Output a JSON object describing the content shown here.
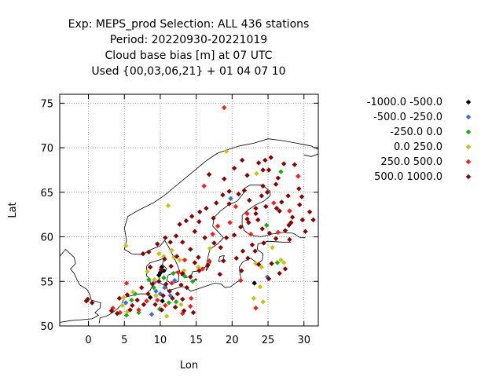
{
  "chart_data": {
    "type": "scatter",
    "title": [
      "Exp: MEPS_prod   Selection: ALL     436 stations",
      "Period: 20220930-20221019",
      "Cloud base bias [m] at  07 UTC",
      "Used {00,03,06,21} + 01 04 07 10"
    ],
    "xlabel": "Lon",
    "ylabel": "Lat",
    "xlim": [
      -4,
      32
    ],
    "ylim": [
      50,
      76
    ],
    "xticks": [
      0,
      5,
      10,
      15,
      20,
      25,
      30
    ],
    "yticks": [
      50,
      55,
      60,
      65,
      70,
      75
    ],
    "grid": true,
    "legend_position": "right",
    "series": [
      {
        "name": "-1000.0 -500.0",
        "color": "#000000",
        "points": [
          [
            10.2,
            56.6
          ],
          [
            10.5,
            56.2
          ],
          [
            10.0,
            56.0
          ],
          [
            9.8,
            55.7
          ],
          [
            8.6,
            53.2
          ],
          [
            10.3,
            52.8
          ],
          [
            23.1,
            54.8
          ]
        ]
      },
      {
        "name": "-500.0 -250.0",
        "color": "#3b6fd6",
        "points": [
          [
            19.8,
            64.3
          ],
          [
            24.9,
            55.5
          ],
          [
            9.2,
            54.9
          ],
          [
            10.6,
            54.3
          ],
          [
            11.4,
            53.4
          ],
          [
            8.8,
            51.3
          ],
          [
            10.0,
            53.6
          ],
          [
            5.2,
            52.6
          ],
          [
            12.0,
            55.1
          ],
          [
            9.4,
            53.9
          ]
        ]
      },
      {
        "name": "-250.0 0.0",
        "color": "#12b212",
        "points": [
          [
            26.8,
            67.3
          ],
          [
            24.8,
            61.3
          ],
          [
            26.3,
            57.1
          ],
          [
            11.8,
            55.9
          ],
          [
            13.4,
            55.6
          ],
          [
            9.1,
            54.3
          ],
          [
            6.0,
            52.9
          ],
          [
            7.0,
            51.5
          ],
          [
            5.3,
            51.2
          ],
          [
            12.2,
            52.7
          ],
          [
            14.5,
            55.0
          ],
          [
            10.5,
            55.4
          ],
          [
            8.4,
            55.2
          ],
          [
            11.2,
            52.6
          ],
          [
            9.9,
            51.9
          ],
          [
            6.5,
            53.6
          ]
        ]
      },
      {
        "name": "0.0 250.0",
        "color": "#c8c212",
        "points": [
          [
            19.2,
            69.6
          ],
          [
            23.4,
            67.1
          ],
          [
            11.1,
            63.5
          ],
          [
            5.2,
            59.0
          ],
          [
            25.6,
            58.8
          ],
          [
            12.7,
            57.4
          ],
          [
            11.6,
            58.5
          ],
          [
            23.3,
            57.0
          ],
          [
            26.8,
            57.4
          ],
          [
            27.2,
            57.1
          ],
          [
            24.1,
            56.6
          ],
          [
            23.9,
            54.4
          ],
          [
            23.0,
            53.1
          ],
          [
            24.3,
            52.7
          ],
          [
            9.8,
            58.1
          ],
          [
            10.5,
            57.8
          ],
          [
            11.9,
            57.7
          ],
          [
            8.2,
            56.1
          ],
          [
            9.2,
            55.2
          ],
          [
            5.4,
            51.6
          ],
          [
            4.7,
            52.3
          ],
          [
            10.9,
            51.1
          ],
          [
            6.2,
            53.8
          ],
          [
            12.9,
            52.4
          ],
          [
            9.4,
            53.4
          ],
          [
            4.9,
            53.2
          ],
          [
            13.3,
            56.2
          ],
          [
            15.3,
            56.6
          ],
          [
            16.9,
            58.7
          ]
        ]
      },
      {
        "name": "250.0 500.0",
        "color": "#ff1a1a",
        "points": [
          [
            18.9,
            74.5
          ],
          [
            16.1,
            65.7
          ],
          [
            29.2,
            66.8
          ],
          [
            28.0,
            62.9
          ],
          [
            22.1,
            62.6
          ],
          [
            20.5,
            63.4
          ],
          [
            18.0,
            61.2
          ],
          [
            17.3,
            60.3
          ],
          [
            13.4,
            57.4
          ],
          [
            5.3,
            54.8
          ],
          [
            15.9,
            56.4
          ],
          [
            12.5,
            56.0
          ],
          [
            4.4,
            51.5
          ],
          [
            3.4,
            52.0
          ],
          [
            10.7,
            52.3
          ],
          [
            14.2,
            52.2
          ],
          [
            13.1,
            51.4
          ],
          [
            11.6,
            54.8
          ],
          [
            14.3,
            53.1
          ],
          [
            8.1,
            52.8
          ],
          [
            9.6,
            52.9
          ],
          [
            7.0,
            51.8
          ],
          [
            16.8,
            57.3
          ],
          [
            26.4,
            60.5
          ],
          [
            25.8,
            63.8
          ],
          [
            23.3,
            52.0
          ],
          [
            21.2,
            55.1
          ],
          [
            19.7,
            61.6
          ],
          [
            22.6,
            60.3
          ]
        ]
      },
      {
        "name": "500.0 1000.0",
        "color": "#8b0000",
        "points": [
          [
            25.4,
            68.9
          ],
          [
            27.2,
            68.2
          ],
          [
            24.6,
            68.6
          ],
          [
            28.7,
            68.1
          ],
          [
            23.7,
            68.3
          ],
          [
            22.1,
            66.9
          ],
          [
            25.1,
            67.5
          ],
          [
            26.4,
            66.6
          ],
          [
            24.3,
            65.7
          ],
          [
            26.1,
            65.9
          ],
          [
            29.3,
            65.4
          ],
          [
            29.7,
            64.5
          ],
          [
            27.8,
            64.6
          ],
          [
            26.9,
            63.9
          ],
          [
            26.6,
            62.9
          ],
          [
            24.7,
            63.4
          ],
          [
            23.3,
            63.2
          ],
          [
            22.4,
            64.1
          ],
          [
            21.7,
            65.2
          ],
          [
            20.9,
            64.8
          ],
          [
            19.6,
            65.1
          ],
          [
            18.7,
            64.7
          ],
          [
            17.8,
            63.8
          ],
          [
            16.4,
            63.2
          ],
          [
            15.5,
            62.8
          ],
          [
            14.4,
            62.3
          ],
          [
            13.6,
            61.8
          ],
          [
            12.7,
            61.4
          ],
          [
            14.8,
            60.6
          ],
          [
            16.2,
            59.9
          ],
          [
            17.5,
            59.3
          ],
          [
            18.4,
            58.8
          ],
          [
            19.2,
            59.9
          ],
          [
            20.3,
            60.2
          ],
          [
            21.2,
            61.1
          ],
          [
            22.3,
            61.6
          ],
          [
            23.6,
            61.9
          ],
          [
            24.2,
            60.9
          ],
          [
            25.2,
            60.4
          ],
          [
            26.1,
            59.8
          ],
          [
            27.4,
            60.7
          ],
          [
            28.2,
            61.6
          ],
          [
            29.8,
            61.9
          ],
          [
            30.8,
            62.8
          ],
          [
            29.4,
            63.6
          ],
          [
            28.0,
            59.7
          ],
          [
            24.4,
            59.3
          ],
          [
            22.8,
            59.1
          ],
          [
            21.5,
            58.4
          ],
          [
            23.2,
            58.4
          ],
          [
            22.2,
            57.6
          ],
          [
            23.7,
            56.9
          ],
          [
            25.5,
            57.0
          ],
          [
            27.4,
            56.4
          ],
          [
            26.6,
            55.9
          ],
          [
            25.1,
            55.3
          ],
          [
            21.3,
            56.2
          ],
          [
            20.6,
            57.6
          ],
          [
            18.8,
            57.3
          ],
          [
            18.3,
            55.8
          ],
          [
            16.6,
            56.8
          ],
          [
            15.3,
            57.7
          ],
          [
            14.2,
            58.6
          ],
          [
            13.1,
            59.4
          ],
          [
            12.2,
            60.1
          ],
          [
            11.4,
            59.4
          ],
          [
            10.7,
            59.9
          ],
          [
            9.6,
            59.2
          ],
          [
            8.4,
            58.3
          ],
          [
            7.6,
            58.1
          ],
          [
            10.6,
            57.5
          ],
          [
            12.3,
            57.8
          ],
          [
            14.8,
            57.1
          ],
          [
            13.1,
            55.9
          ],
          [
            14.2,
            55.5
          ],
          [
            15.4,
            56.2
          ],
          [
            11.5,
            56.7
          ],
          [
            10.1,
            56.3
          ],
          [
            8.6,
            56.6
          ],
          [
            12.9,
            54.6
          ],
          [
            13.7,
            54.3
          ],
          [
            11.3,
            53.9
          ],
          [
            12.4,
            53.6
          ],
          [
            13.1,
            53.0
          ],
          [
            11.7,
            53.1
          ],
          [
            10.4,
            53.4
          ],
          [
            9.3,
            52.4
          ],
          [
            8.3,
            53.6
          ],
          [
            7.7,
            52.4
          ],
          [
            6.8,
            52.9
          ],
          [
            6.1,
            52.3
          ],
          [
            5.8,
            51.8
          ],
          [
            4.0,
            51.4
          ],
          [
            3.2,
            51.7
          ],
          [
            5.4,
            53.5
          ],
          [
            4.3,
            53.1
          ],
          [
            7.4,
            54.3
          ],
          [
            8.9,
            54.7
          ],
          [
            9.8,
            55.0
          ],
          [
            10.8,
            54.7
          ],
          [
            12.1,
            52.1
          ],
          [
            13.3,
            51.7
          ],
          [
            14.6,
            51.5
          ],
          [
            10.2,
            51.8
          ],
          [
            -0.3,
            52.8
          ],
          [
            -0.1,
            53.0
          ],
          [
            0.5,
            52.6
          ],
          [
            24.1,
            64.6
          ],
          [
            20.3,
            67.7
          ],
          [
            18.9,
            66.5
          ],
          [
            16.8,
            67.0
          ],
          [
            15.4,
            61.7
          ],
          [
            17.4,
            62.1
          ],
          [
            24.9,
            65.0
          ],
          [
            26.2,
            63.2
          ],
          [
            27.9,
            61.3
          ],
          [
            30.2,
            60.6
          ],
          [
            31.3,
            61.9
          ],
          [
            28.4,
            62.2
          ],
          [
            23.3,
            62.6
          ],
          [
            24.3,
            67.5
          ],
          [
            21.4,
            68.6
          ],
          [
            22.1,
            62.0
          ],
          [
            19.6,
            63.7
          ]
        ]
      }
    ]
  }
}
